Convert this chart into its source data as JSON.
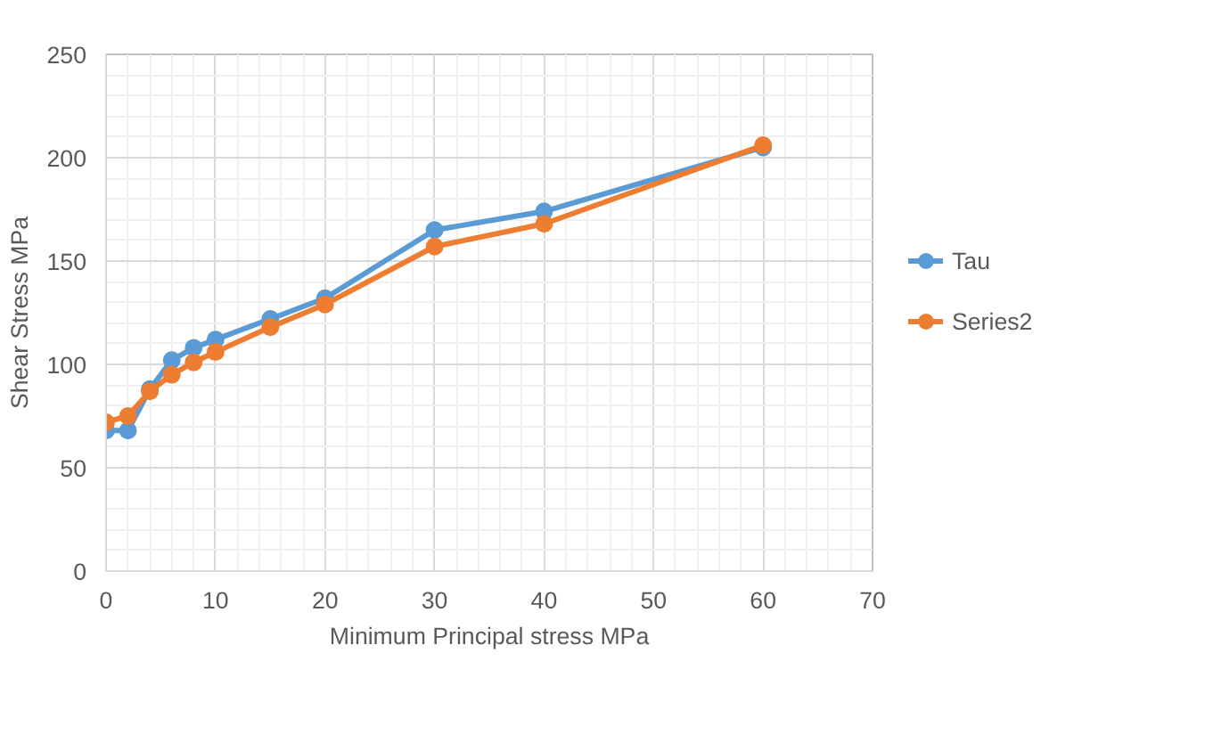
{
  "chart_data": {
    "type": "line",
    "xlabel": "Minimum Principal stress MPa",
    "ylabel": "Shear Stress MPa",
    "x": [
      0,
      2,
      4,
      6,
      8,
      10,
      15,
      20,
      30,
      40,
      60
    ],
    "series": [
      {
        "name": "Tau",
        "color": "#5b9bd5",
        "values": [
          68,
          68,
          88,
          102,
          108,
          112,
          122,
          132,
          165,
          174,
          205
        ]
      },
      {
        "name": "Series2",
        "color": "#ed7d31",
        "values": [
          72,
          75,
          87,
          95,
          101,
          106,
          118,
          129,
          157,
          168,
          206
        ]
      }
    ],
    "xlim": [
      0,
      70
    ],
    "xticks": [
      0,
      10,
      20,
      30,
      40,
      50,
      60,
      70
    ],
    "ylim": [
      0,
      250
    ],
    "yticks": [
      0,
      50,
      100,
      150,
      200,
      250
    ],
    "grid": true,
    "legend": "right",
    "marker": "circle",
    "line_style": "solid"
  }
}
